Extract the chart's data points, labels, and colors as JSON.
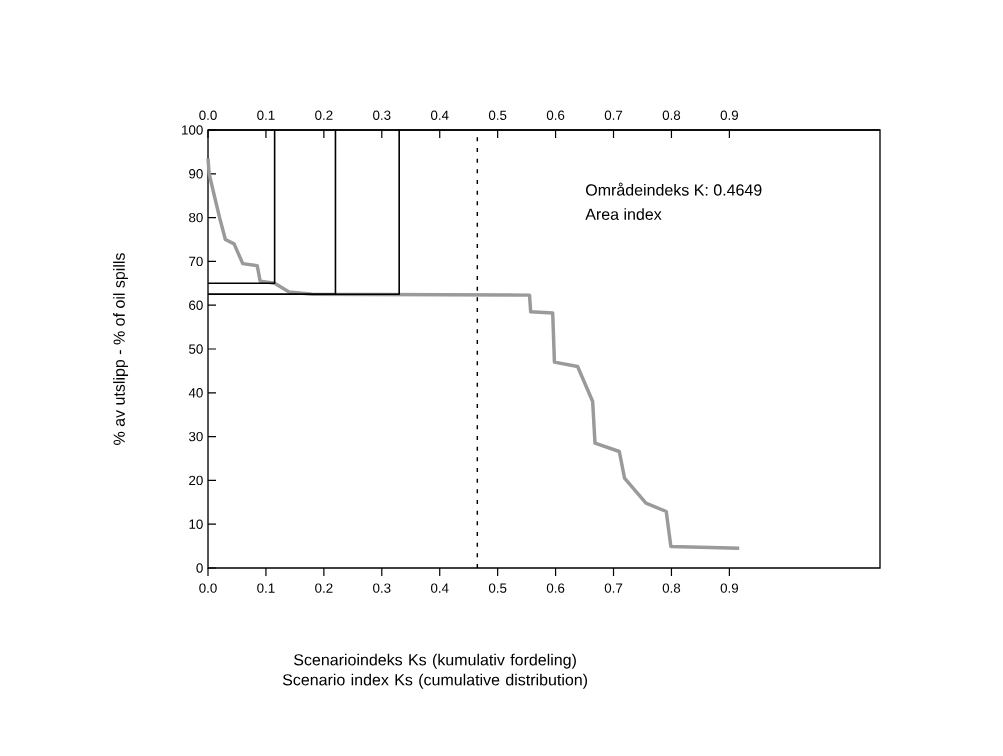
{
  "chart_data": {
    "type": "line",
    "xlabel": "Scenarioindeks Ks (kumulativ fordeling) Scenario index Ks (cumulative distribution)",
    "ylabel": "% av utslipp - % of oil spills",
    "annotations": [
      "Områdeindeks K: 0.4649",
      "Area index"
    ],
    "xlim": [
      0,
      1.16
    ],
    "ylim": [
      0,
      100
    ],
    "xticks": [
      {
        "value": 0,
        "label": "0.0"
      },
      0.1,
      0.2,
      0.3,
      0.4,
      0.5,
      0.6,
      0.7,
      0.8,
      0.9
    ],
    "x2lim": [
      0,
      1.16
    ],
    "x2ticks": [
      {
        "value": 0,
        "label": "0.0"
      },
      0.1,
      0.2,
      0.3,
      0.4,
      0.5,
      0.6,
      0.7,
      0.8,
      0.9
    ],
    "yticks": [
      0,
      10,
      20,
      30,
      40,
      50,
      60,
      70,
      80,
      90,
      100
    ],
    "marker": "none",
    "series": [
      {
        "color": "#9a9a9a",
        "x": [
          0,
          0.002,
          0.01,
          0.02,
          0.03,
          0.045,
          0.06,
          0.085,
          0.09,
          0.115,
          0.14,
          0.18,
          0.555,
          0.557,
          0.595,
          0.598,
          0.638,
          0.664,
          0.668,
          0.71,
          0.719,
          0.756,
          0.791,
          0.799,
          0.917
        ],
        "values": [
          93.5,
          90,
          85.5,
          80,
          75,
          74,
          69.5,
          69,
          65.5,
          65,
          63,
          62.5,
          62.3,
          58.5,
          58.2,
          47,
          46,
          38,
          28.5,
          26.6,
          20.5,
          14.8,
          12.9,
          4.9,
          4.5
        ]
      },
      {
        "color": "#000000",
        "x": [
          0,
          0.115,
          0.115
        ],
        "values": [
          65,
          65,
          100
        ]
      },
      {
        "color": "#000000",
        "x": [
          0,
          0.22,
          0.22
        ],
        "values": [
          62.5,
          62.5,
          100
        ]
      },
      {
        "color": "#000000",
        "x": [
          0,
          0.33,
          0.33
        ],
        "values": [
          62.5,
          62.5,
          100
        ]
      }
    ],
    "ref_lines": [
      {
        "axis": "x",
        "value": 0.4649,
        "line_style": "dashed",
        "color": "#000000"
      }
    ]
  }
}
